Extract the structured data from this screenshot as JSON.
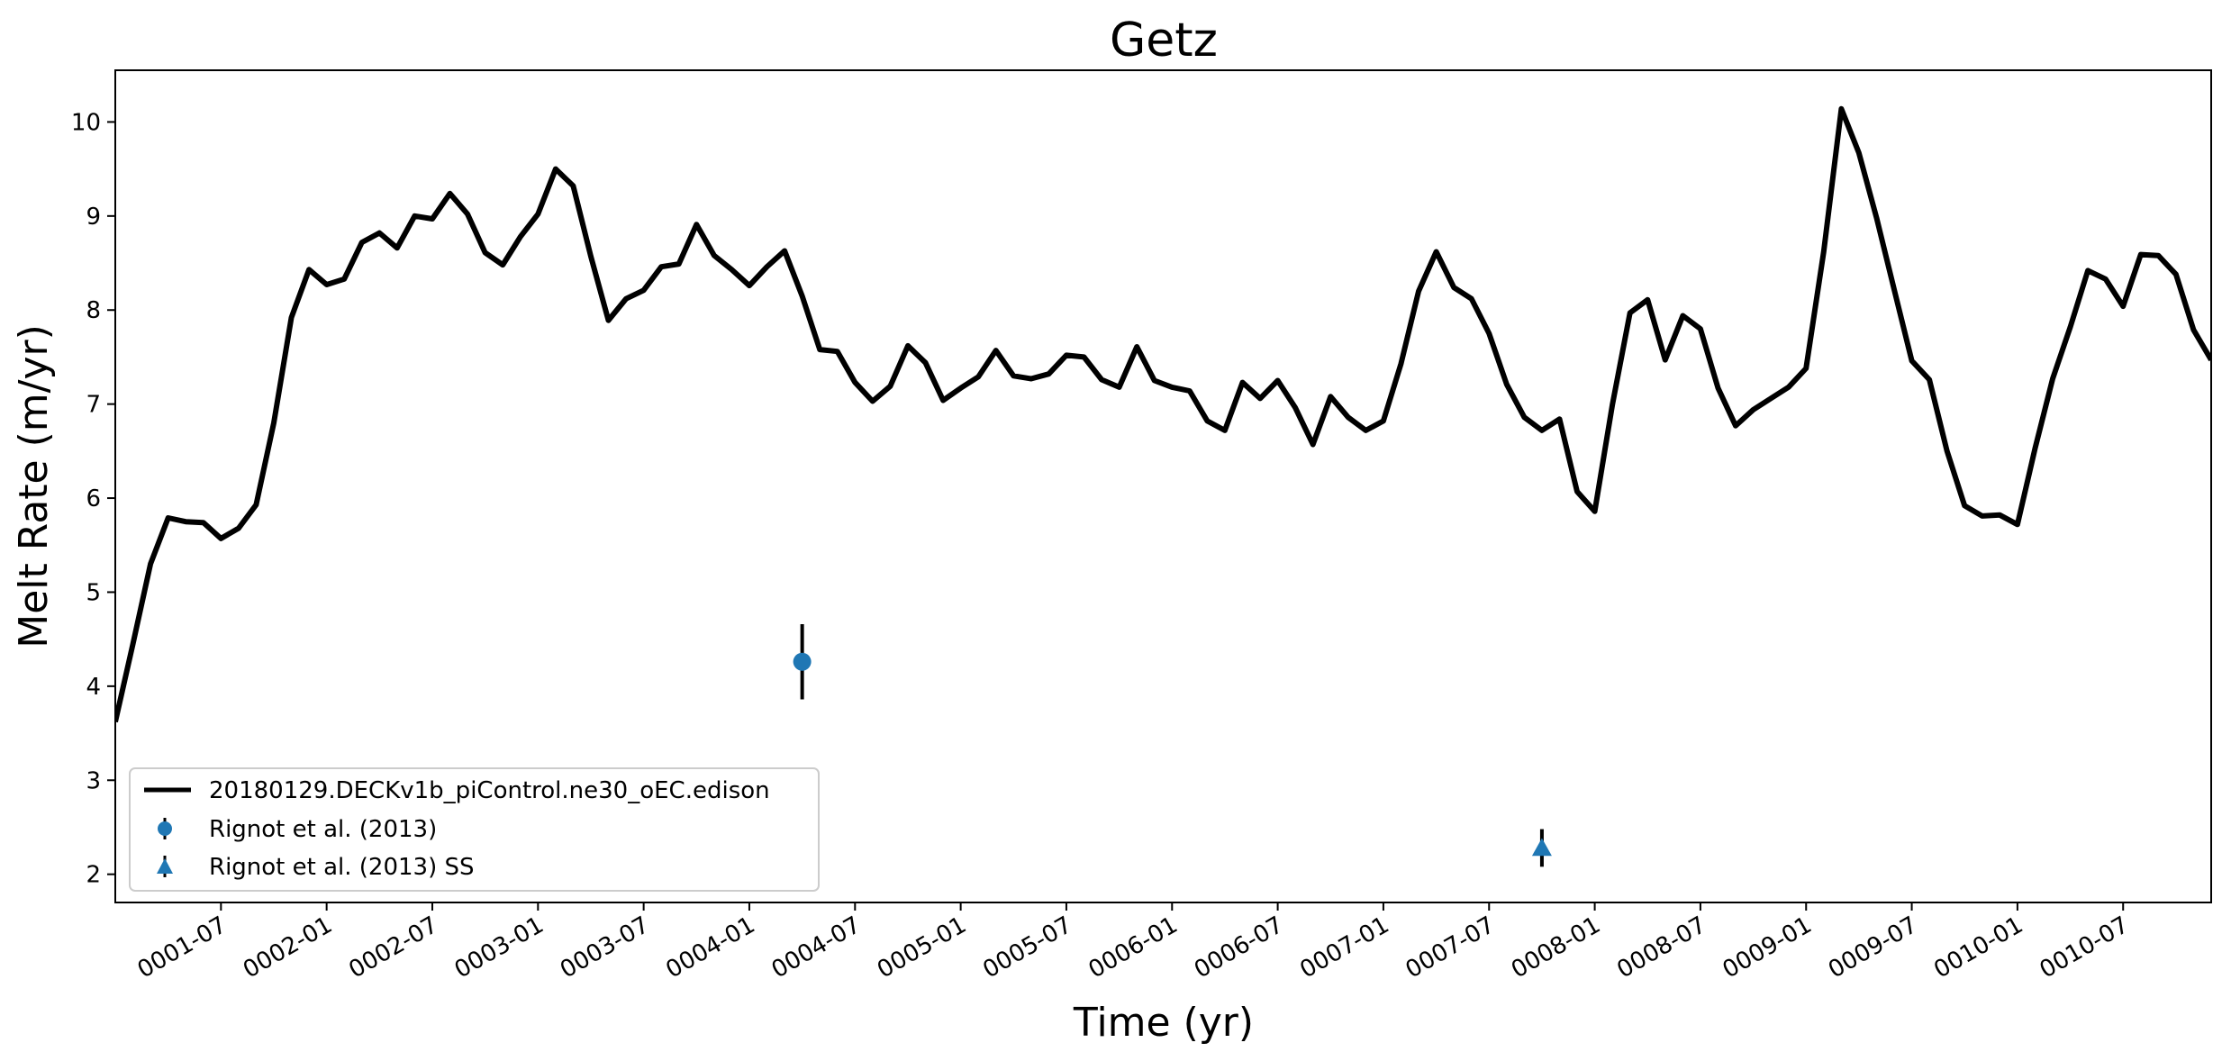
{
  "chart_data": {
    "type": "line",
    "title": "Getz",
    "xlabel": "Time (yr)",
    "ylabel": "Melt Rate (m/yr)",
    "x_unit": "month",
    "xlim": [
      "0001-01",
      "0010-12"
    ],
    "ylim": [
      1.7,
      10.55
    ],
    "y_ticks": [
      2,
      3,
      4,
      5,
      6,
      7,
      8,
      9,
      10
    ],
    "x_ticks": [
      "0001-07",
      "0002-01",
      "0002-07",
      "0003-01",
      "0003-07",
      "0004-01",
      "0004-07",
      "0005-01",
      "0005-07",
      "0006-01",
      "0006-07",
      "0007-01",
      "0007-07",
      "0008-01",
      "0008-07",
      "0009-01",
      "0009-07",
      "0010-01",
      "0010-07"
    ],
    "grid": false,
    "legend_position": "lower-left",
    "series": [
      {
        "name": "20180129.DECKv1b_piControl.ne30_oEC.edison",
        "color": "#000000",
        "kind": "line",
        "x_start": "0001-01",
        "values": [
          3.62,
          4.45,
          5.3,
          5.79,
          5.75,
          5.74,
          5.57,
          5.68,
          5.93,
          6.8,
          7.92,
          8.43,
          8.27,
          8.33,
          8.72,
          8.82,
          8.66,
          9.0,
          8.97,
          9.24,
          9.02,
          8.61,
          8.48,
          8.78,
          9.02,
          9.5,
          9.32,
          8.57,
          7.89,
          8.12,
          8.21,
          8.46,
          8.49,
          8.91,
          8.58,
          8.43,
          8.26,
          8.46,
          8.63,
          8.15,
          7.58,
          7.56,
          7.23,
          7.03,
          7.19,
          7.62,
          7.44,
          7.04,
          7.17,
          7.29,
          7.57,
          7.3,
          7.27,
          7.32,
          7.52,
          7.5,
          7.26,
          7.18,
          7.61,
          7.25,
          7.18,
          7.14,
          6.82,
          6.72,
          7.23,
          7.06,
          7.25,
          6.96,
          6.57,
          7.08,
          6.86,
          6.72,
          6.82,
          7.43,
          8.2,
          8.62,
          8.24,
          8.12,
          7.75,
          7.21,
          6.86,
          6.72,
          6.84,
          6.07,
          5.86,
          6.99,
          7.97,
          8.11,
          7.47,
          7.94,
          7.8,
          7.17,
          6.77,
          6.94,
          7.06,
          7.18,
          7.38,
          8.62,
          10.14,
          9.67,
          8.98,
          8.22,
          7.46,
          7.26,
          6.5,
          5.92,
          5.81,
          5.82,
          5.72,
          6.53,
          7.27,
          7.82,
          8.42,
          8.33,
          8.04,
          8.59,
          8.58,
          8.38,
          7.79,
          7.47
        ]
      },
      {
        "name": "Rignot et al. (2013)",
        "color": "#1f77b4",
        "kind": "errorbar-point",
        "marker": "circle",
        "x": "0004-04",
        "y": 4.26,
        "yerr": 0.4
      },
      {
        "name": "Rignot et al. (2013) SS",
        "color": "#1f77b4",
        "kind": "errorbar-point",
        "marker": "triangle",
        "x": "0007-10",
        "y": 2.28,
        "yerr": 0.2
      }
    ]
  }
}
